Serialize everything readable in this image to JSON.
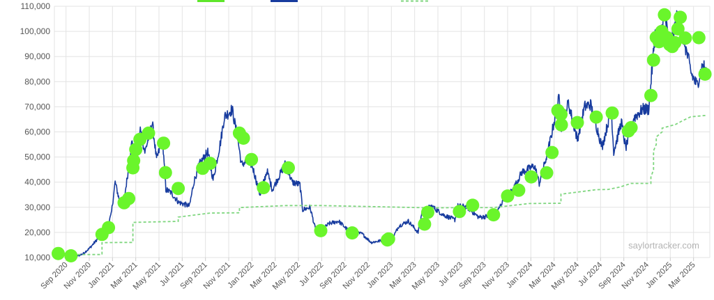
{
  "watermark": "saylortracker.com",
  "chart_data": {
    "type": "line",
    "title": "",
    "xlabel": "",
    "ylabel": "",
    "ylim": [
      10000,
      110000
    ],
    "yticks": [
      "10,000",
      "20,000",
      "30,000",
      "40,000",
      "50,000",
      "60,000",
      "70,000",
      "80,000",
      "90,000",
      "100,000",
      "110,000"
    ],
    "xlim": [
      "2020-08",
      "2025-04.4"
    ],
    "xticks": [
      "Sep 2020",
      "Nov 2020",
      "Jan 2021",
      "Mar 2021",
      "May 2021",
      "Jul 2021",
      "Sep 2021",
      "Nov 2021",
      "Jan 2022",
      "Mar 2022",
      "May 2022",
      "Jul 2022",
      "Sep 2022",
      "Nov 2022",
      "Jan 2023",
      "Mar 2023",
      "May 2023",
      "Jul 2023",
      "Sep 2023",
      "Nov 2023",
      "Jan 2024",
      "Mar 2024",
      "May 2024",
      "Jul 2024",
      "Sep 2024",
      "Nov 2024",
      "Jan 2025",
      "Mar 2025"
    ],
    "grid": true,
    "legend": "top",
    "colors": {
      "price": "#173b9e",
      "avg_cost": "#7fd67f",
      "purchases": "#6af52b",
      "legend_green": "#5ee62a"
    },
    "series": [
      {
        "key": "price",
        "style": "solid",
        "points": [
          [
            "2020-08-11",
            11600
          ],
          [
            "2020-09-01",
            11500
          ],
          [
            "2020-09-15",
            10800
          ],
          [
            "2020-10-01",
            10700
          ],
          [
            "2020-10-15",
            11500
          ],
          [
            "2020-11-01",
            13600
          ],
          [
            "2020-11-15",
            16000
          ],
          [
            "2020-12-01",
            19000
          ],
          [
            "2020-12-15",
            21000
          ],
          [
            "2020-12-28",
            27000
          ],
          [
            "2021-01-08",
            40000
          ],
          [
            "2021-01-20",
            32000
          ],
          [
            "2021-02-01",
            33000
          ],
          [
            "2021-02-15",
            48000
          ],
          [
            "2021-02-22",
            57000
          ],
          [
            "2021-03-01",
            46000
          ],
          [
            "2021-03-13",
            61000
          ],
          [
            "2021-03-25",
            52000
          ],
          [
            "2021-04-14",
            63500
          ],
          [
            "2021-04-25",
            49000
          ],
          [
            "2021-05-10",
            57000
          ],
          [
            "2021-05-19",
            37000
          ],
          [
            "2021-06-01",
            36000
          ],
          [
            "2021-06-22",
            32000
          ],
          [
            "2021-07-20",
            30500
          ],
          [
            "2021-08-01",
            40000
          ],
          [
            "2021-08-15",
            47000
          ],
          [
            "2021-09-07",
            52000
          ],
          [
            "2021-09-21",
            41000
          ],
          [
            "2021-10-10",
            56000
          ],
          [
            "2021-10-20",
            66000
          ],
          [
            "2021-11-10",
            69000
          ],
          [
            "2021-11-25",
            57000
          ],
          [
            "2021-12-04",
            47000
          ],
          [
            "2021-12-15",
            48000
          ],
          [
            "2022-01-01",
            47000
          ],
          [
            "2022-01-22",
            35000
          ],
          [
            "2022-02-10",
            44500
          ],
          [
            "2022-02-24",
            37000
          ],
          [
            "2022-03-28",
            47500
          ],
          [
            "2022-04-15",
            40000
          ],
          [
            "2022-05-05",
            39000
          ],
          [
            "2022-05-12",
            29000
          ],
          [
            "2022-06-01",
            30000
          ],
          [
            "2022-06-14",
            22000
          ],
          [
            "2022-06-18",
            19000
          ],
          [
            "2022-07-20",
            23500
          ],
          [
            "2022-08-15",
            24500
          ],
          [
            "2022-09-15",
            20000
          ],
          [
            "2022-10-15",
            19500
          ],
          [
            "2022-11-09",
            16000
          ],
          [
            "2022-12-15",
            17000
          ],
          [
            "2023-01-01",
            16600
          ],
          [
            "2023-01-20",
            22500
          ],
          [
            "2023-02-15",
            24500
          ],
          [
            "2023-03-10",
            20000
          ],
          [
            "2023-03-20",
            28000
          ],
          [
            "2023-04-14",
            30500
          ],
          [
            "2023-05-15",
            27000
          ],
          [
            "2023-06-15",
            25000
          ],
          [
            "2023-06-23",
            30500
          ],
          [
            "2023-07-15",
            30200
          ],
          [
            "2023-08-17",
            26000
          ],
          [
            "2023-09-15",
            26500
          ],
          [
            "2023-10-01",
            27000
          ],
          [
            "2023-10-23",
            34000
          ],
          [
            "2023-11-15",
            37000
          ],
          [
            "2023-12-08",
            44000
          ],
          [
            "2024-01-11",
            46500
          ],
          [
            "2024-01-23",
            39500
          ],
          [
            "2024-02-15",
            52000
          ],
          [
            "2024-03-14",
            73500
          ],
          [
            "2024-03-20",
            62000
          ],
          [
            "2024-04-08",
            71500
          ],
          [
            "2024-05-01",
            57000
          ],
          [
            "2024-05-20",
            70000
          ],
          [
            "2024-06-05",
            71000
          ],
          [
            "2024-07-05",
            54000
          ],
          [
            "2024-07-29",
            69000
          ],
          [
            "2024-08-05",
            52000
          ],
          [
            "2024-08-25",
            64000
          ],
          [
            "2024-09-06",
            53500
          ],
          [
            "2024-09-27",
            65500
          ],
          [
            "2024-10-20",
            69000
          ],
          [
            "2024-11-05",
            69000
          ],
          [
            "2024-11-22",
            99000
          ],
          [
            "2024-12-05",
            98000
          ],
          [
            "2024-12-17",
            107000
          ],
          [
            "2024-12-30",
            92500
          ],
          [
            "2025-01-20",
            106500
          ],
          [
            "2025-02-05",
            97500
          ],
          [
            "2025-02-26",
            83000
          ],
          [
            "2025-03-10",
            78500
          ],
          [
            "2025-03-25",
            87000
          ],
          [
            "2025-04-06",
            83000
          ]
        ]
      },
      {
        "key": "avg_cost",
        "style": "dashed",
        "points": [
          [
            "2020-08-11",
            11650
          ],
          [
            "2020-09-14",
            11200
          ],
          [
            "2020-12-04",
            11200
          ],
          [
            "2020-12-04",
            15900
          ],
          [
            "2021-01-22",
            16000
          ],
          [
            "2021-02-24",
            16000
          ],
          [
            "2021-02-24",
            24000
          ],
          [
            "2021-06-21",
            24400
          ],
          [
            "2021-06-21",
            26100
          ],
          [
            "2021-09-13",
            27700
          ],
          [
            "2021-11-29",
            27800
          ],
          [
            "2021-11-29",
            29900
          ],
          [
            "2022-03-30",
            30700
          ],
          [
            "2022-06-29",
            30700
          ],
          [
            "2023-04-05",
            29800
          ],
          [
            "2023-09-25",
            29900
          ],
          [
            "2023-12-27",
            31500
          ],
          [
            "2024-03-19",
            31600
          ],
          [
            "2024-03-19",
            35200
          ],
          [
            "2024-06-20",
            37000
          ],
          [
            "2024-07-20",
            37100
          ],
          [
            "2024-08-20",
            38000
          ],
          [
            "2024-09-20",
            39500
          ],
          [
            "2024-11-11",
            39500
          ],
          [
            "2024-11-11",
            42000
          ],
          [
            "2024-11-18",
            45000
          ],
          [
            "2024-11-18",
            52500
          ],
          [
            "2024-11-25",
            55000
          ],
          [
            "2024-11-25",
            58000
          ],
          [
            "2024-12-10",
            60000
          ],
          [
            "2024-12-10",
            61500
          ],
          [
            "2025-01-15",
            63000
          ],
          [
            "2025-02-03",
            64500
          ],
          [
            "2025-02-24",
            66000
          ],
          [
            "2025-04-06",
            66600
          ]
        ]
      },
      {
        "key": "purchases",
        "style": "markers",
        "points": [
          [
            "2020-08-11",
            11600
          ],
          [
            "2020-09-14",
            10700
          ],
          [
            "2020-12-04",
            19200
          ],
          [
            "2020-12-21",
            21900
          ],
          [
            "2021-02-01",
            31800
          ],
          [
            "2021-02-13",
            33500
          ],
          [
            "2021-02-24",
            45700
          ],
          [
            "2021-02-26",
            48600
          ],
          [
            "2021-03-01",
            53000
          ],
          [
            "2021-03-12",
            57000
          ],
          [
            "2021-04-04",
            59500
          ],
          [
            "2021-05-13",
            55500
          ],
          [
            "2021-05-18",
            43800
          ],
          [
            "2021-06-21",
            37500
          ],
          [
            "2021-08-24",
            45500
          ],
          [
            "2021-09-13",
            47500
          ],
          [
            "2021-11-29",
            59500
          ],
          [
            "2021-12-09",
            57500
          ],
          [
            "2021-12-30",
            49000
          ],
          [
            "2022-01-31",
            37800
          ],
          [
            "2022-04-05",
            45700
          ],
          [
            "2022-06-29",
            20700
          ],
          [
            "2022-09-20",
            19800
          ],
          [
            "2022-12-21",
            17000
          ],
          [
            "2022-12-24",
            17400
          ],
          [
            "2023-03-27",
            23300
          ],
          [
            "2023-04-05",
            28000
          ],
          [
            "2023-06-27",
            28300
          ],
          [
            "2023-07-31",
            30800
          ],
          [
            "2023-09-25",
            27000
          ],
          [
            "2023-11-01",
            34500
          ],
          [
            "2023-11-30",
            36800
          ],
          [
            "2024-01-02",
            42100
          ],
          [
            "2024-02-12",
            43700
          ],
          [
            "2024-02-26",
            51800
          ],
          [
            "2024-03-11",
            68500
          ],
          [
            "2024-03-19",
            67000
          ],
          [
            "2024-03-20",
            62800
          ],
          [
            "2024-05-01",
            63700
          ],
          [
            "2024-06-20",
            65900
          ],
          [
            "2024-08-01",
            67500
          ],
          [
            "2024-09-13",
            60400
          ],
          [
            "2024-09-20",
            61700
          ],
          [
            "2024-11-11",
            74500
          ],
          [
            "2024-11-18",
            88600
          ],
          [
            "2024-11-25",
            97600
          ],
          [
            "2024-12-02",
            95900
          ],
          [
            "2024-12-09",
            100000
          ],
          [
            "2024-12-16",
            106600
          ],
          [
            "2024-12-23",
            97500
          ],
          [
            "2024-12-30",
            94700
          ],
          [
            "2025-01-06",
            94000
          ],
          [
            "2025-01-13",
            95500
          ],
          [
            "2025-01-21",
            101000
          ],
          [
            "2025-01-27",
            105600
          ],
          [
            "2025-02-10",
            97300
          ],
          [
            "2025-03-15",
            97500
          ],
          [
            "2025-03-31",
            83000
          ]
        ]
      }
    ]
  }
}
